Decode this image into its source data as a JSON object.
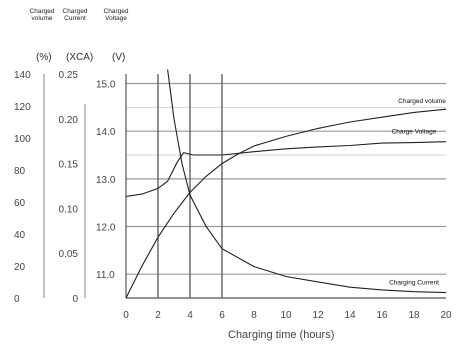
{
  "headers": {
    "volume": "Charged volume",
    "current": "Charged Current",
    "voltage": "Charged Voltage"
  },
  "units": {
    "volume": "(%)",
    "current": "(XCA)",
    "voltage": "(V)"
  },
  "chart_data": {
    "type": "line",
    "xlabel": "Charging time (hours)",
    "xlim": [
      0,
      20
    ],
    "x_ticks": [
      "0",
      "2",
      "4",
      "6",
      "8",
      "10",
      "12",
      "14",
      "16",
      "18",
      "20"
    ],
    "axes": {
      "volume": {
        "ticks": [
          "140",
          "120",
          "100",
          "80",
          "60",
          "40",
          "20",
          "0"
        ],
        "ylim": [
          0,
          140
        ],
        "unit": "(%)"
      },
      "current": {
        "ticks": [
          "0.25",
          "0.20",
          "0.15",
          "0.10",
          "0.05",
          "0"
        ],
        "ylim": [
          0,
          0.25
        ],
        "unit": "(XCA)"
      },
      "voltage": {
        "ticks": [
          "15.0",
          "14.0",
          "13.0",
          "12.0",
          "11.0"
        ],
        "ylim": [
          10.5,
          15.2
        ],
        "unit": "(V)"
      }
    },
    "grid": true,
    "series": [
      {
        "name": "Charged volume",
        "axis": "volume",
        "x": [
          0,
          1,
          2,
          3,
          4,
          5,
          6,
          7,
          8,
          10,
          12,
          14,
          16,
          18,
          20
        ],
        "y": [
          0,
          20,
          38,
          53,
          66,
          76,
          84,
          90,
          95,
          101,
          106,
          110,
          113,
          116,
          118
        ]
      },
      {
        "name": "Charge Voltage",
        "axis": "voltage",
        "x": [
          0,
          1,
          2,
          2.6,
          3.2,
          3.6,
          4.2,
          5,
          6,
          8,
          10,
          12,
          14,
          16,
          18,
          20
        ],
        "y": [
          12.63,
          12.68,
          12.8,
          12.95,
          13.35,
          13.55,
          13.5,
          13.5,
          13.5,
          13.57,
          13.63,
          13.67,
          13.7,
          13.75,
          13.76,
          13.78
        ]
      },
      {
        "name": "Charging Current",
        "axis": "current",
        "x": [
          2.6,
          3.0,
          3.5,
          4.0,
          5.0,
          6.0,
          8.0,
          10.0,
          12.0,
          14.0,
          16.0,
          18.0,
          20.0
        ],
        "y": [
          0.255,
          0.2,
          0.15,
          0.115,
          0.08,
          0.055,
          0.035,
          0.024,
          0.018,
          0.012,
          0.009,
          0.007,
          0.006
        ]
      }
    ]
  }
}
